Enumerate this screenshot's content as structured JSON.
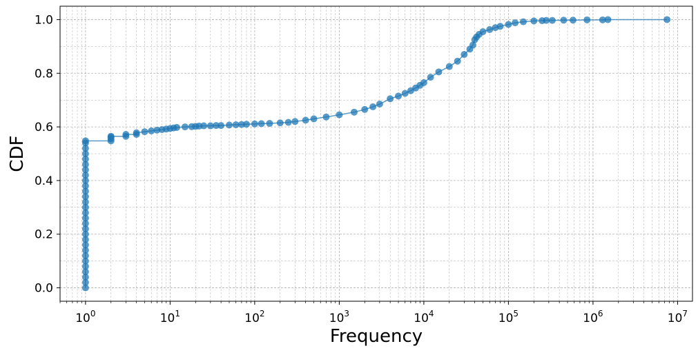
{
  "chart_data": {
    "type": "scatter",
    "title": "",
    "xlabel": "Frequency",
    "ylabel": "CDF",
    "x_scale": "log",
    "xlim": [
      0.5,
      15000000
    ],
    "ylim": [
      -0.05,
      1.05
    ],
    "grid": "both-major-and-minor",
    "legend": "none",
    "color": "#1f77b4",
    "x_ticks": [
      {
        "value": 1,
        "base": "10",
        "exp": "0"
      },
      {
        "value": 10,
        "base": "10",
        "exp": "1"
      },
      {
        "value": 100,
        "base": "10",
        "exp": "2"
      },
      {
        "value": 1000,
        "base": "10",
        "exp": "3"
      },
      {
        "value": 10000,
        "base": "10",
        "exp": "4"
      },
      {
        "value": 100000,
        "base": "10",
        "exp": "5"
      },
      {
        "value": 1000000,
        "base": "10",
        "exp": "6"
      },
      {
        "value": 10000000,
        "base": "10",
        "exp": "7"
      }
    ],
    "y_ticks": [
      {
        "value": 0.0,
        "label": "0.0"
      },
      {
        "value": 0.2,
        "label": "0.2"
      },
      {
        "value": 0.4,
        "label": "0.4"
      },
      {
        "value": 0.6,
        "label": "0.6"
      },
      {
        "value": 0.8,
        "label": "0.8"
      },
      {
        "value": 1.0,
        "label": "1.0"
      }
    ],
    "series": [
      {
        "points": [
          [
            1,
            0.0
          ],
          [
            1,
            0.02
          ],
          [
            1,
            0.04
          ],
          [
            1,
            0.06
          ],
          [
            1,
            0.08
          ],
          [
            1,
            0.1
          ],
          [
            1,
            0.12
          ],
          [
            1,
            0.14
          ],
          [
            1,
            0.16
          ],
          [
            1,
            0.18
          ],
          [
            1,
            0.2
          ],
          [
            1,
            0.22
          ],
          [
            1,
            0.24
          ],
          [
            1,
            0.26
          ],
          [
            1,
            0.28
          ],
          [
            1,
            0.3
          ],
          [
            1,
            0.32
          ],
          [
            1,
            0.34
          ],
          [
            1,
            0.36
          ],
          [
            1,
            0.38
          ],
          [
            1,
            0.4
          ],
          [
            1,
            0.42
          ],
          [
            1,
            0.44
          ],
          [
            1,
            0.46
          ],
          [
            1,
            0.48
          ],
          [
            1,
            0.5
          ],
          [
            1,
            0.52
          ],
          [
            1,
            0.54
          ],
          [
            1,
            0.548
          ],
          [
            2,
            0.548
          ],
          [
            2,
            0.555
          ],
          [
            2,
            0.562
          ],
          [
            2,
            0.565
          ],
          [
            3,
            0.565
          ],
          [
            3,
            0.572
          ],
          [
            4,
            0.572
          ],
          [
            4,
            0.578
          ],
          [
            5,
            0.582
          ],
          [
            6,
            0.585
          ],
          [
            7,
            0.588
          ],
          [
            8,
            0.59
          ],
          [
            9,
            0.592
          ],
          [
            10,
            0.594
          ],
          [
            11,
            0.596
          ],
          [
            12,
            0.598
          ],
          [
            15,
            0.6
          ],
          [
            18,
            0.601
          ],
          [
            20,
            0.602
          ],
          [
            22,
            0.603
          ],
          [
            25,
            0.604
          ],
          [
            30,
            0.604
          ],
          [
            35,
            0.605
          ],
          [
            40,
            0.605
          ],
          [
            50,
            0.607
          ],
          [
            60,
            0.608
          ],
          [
            70,
            0.609
          ],
          [
            80,
            0.61
          ],
          [
            100,
            0.611
          ],
          [
            120,
            0.612
          ],
          [
            150,
            0.613
          ],
          [
            200,
            0.615
          ],
          [
            250,
            0.617
          ],
          [
            300,
            0.62
          ],
          [
            400,
            0.625
          ],
          [
            500,
            0.63
          ],
          [
            700,
            0.637
          ],
          [
            1000,
            0.645
          ],
          [
            1500,
            0.655
          ],
          [
            2000,
            0.665
          ],
          [
            2500,
            0.675
          ],
          [
            3000,
            0.685
          ],
          [
            4000,
            0.705
          ],
          [
            5000,
            0.715
          ],
          [
            6000,
            0.725
          ],
          [
            7000,
            0.735
          ],
          [
            8000,
            0.745
          ],
          [
            9000,
            0.755
          ],
          [
            10000,
            0.765
          ],
          [
            12000,
            0.785
          ],
          [
            15000,
            0.805
          ],
          [
            20000,
            0.825
          ],
          [
            25000,
            0.845
          ],
          [
            30000,
            0.87
          ],
          [
            35000,
            0.89
          ],
          [
            38000,
            0.905
          ],
          [
            40000,
            0.925
          ],
          [
            42000,
            0.935
          ],
          [
            45000,
            0.945
          ],
          [
            50000,
            0.955
          ],
          [
            60000,
            0.963
          ],
          [
            70000,
            0.97
          ],
          [
            80000,
            0.975
          ],
          [
            100000,
            0.982
          ],
          [
            120000,
            0.988
          ],
          [
            150000,
            0.992
          ],
          [
            200000,
            0.995
          ],
          [
            250000,
            0.996
          ],
          [
            280000,
            0.997
          ],
          [
            330000,
            0.997
          ],
          [
            450000,
            0.998
          ],
          [
            580000,
            0.998
          ],
          [
            850000,
            0.999
          ],
          [
            1300000,
            0.999
          ],
          [
            1500000,
            1.0
          ],
          [
            7500000,
            1.0
          ]
        ]
      }
    ]
  }
}
